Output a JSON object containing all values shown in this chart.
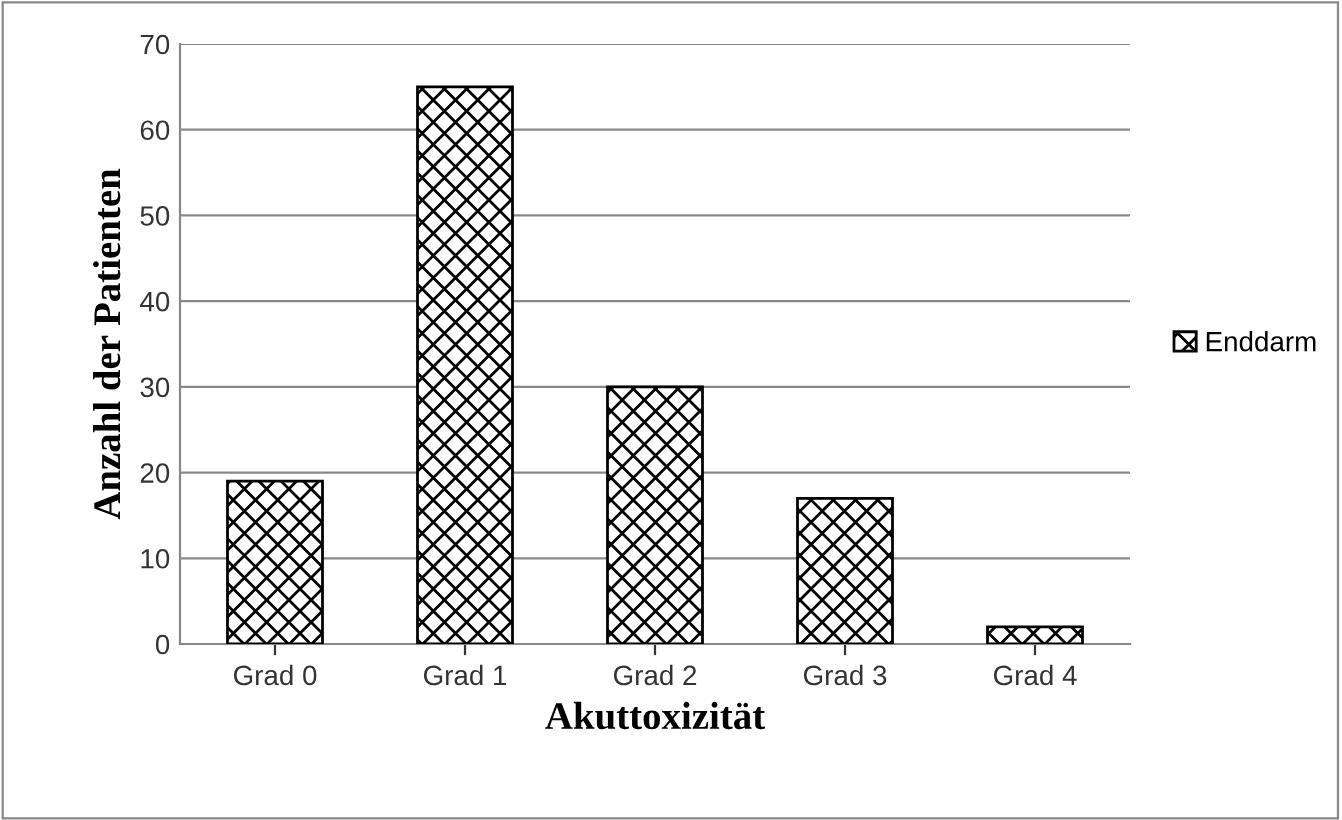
{
  "chart_data": {
    "type": "bar",
    "xlabel": "Akuttoxizität",
    "ylabel": "Anzahl der Patienten",
    "categories": [
      "Grad 0",
      "Grad 1",
      "Grad 2",
      "Grad 3",
      "Grad 4"
    ],
    "series": [
      {
        "name": "Enddarm",
        "values": [
          19,
          65,
          30,
          17,
          2
        ]
      }
    ],
    "ylim": [
      0,
      70
    ],
    "yticks": [
      0,
      10,
      20,
      30,
      40,
      50,
      60,
      70
    ],
    "grid": "y",
    "legend": "right"
  }
}
